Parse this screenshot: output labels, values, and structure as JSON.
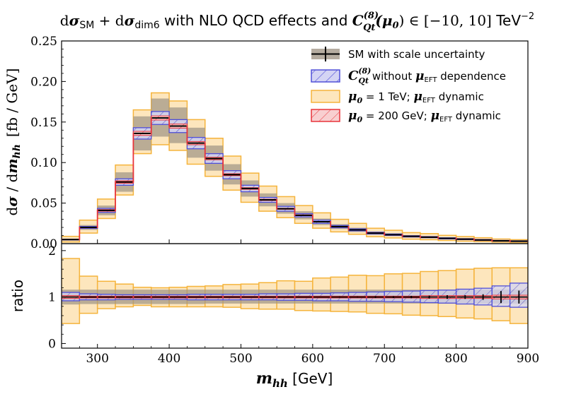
{
  "chart_data": {
    "type": "histogram-ratio",
    "title": "dσ_SM + dσ_dim6 with NLO QCD effects and C_Qt^(8)(μ0) ∈ [−10, 10] TeV^−2",
    "title_parts": {
      "d1": "d",
      "sigma1": "σ",
      "sm": "SM",
      "plus": " + ",
      "d2": "d",
      "sigma2": "σ",
      "dim6": "dim6",
      "middle": " with NLO QCD effects and ",
      "coef": "C",
      "coef_sup": "(8)",
      "coef_sub": "Qt",
      "mu": "(μ",
      "mu_sub": "0",
      "range": ") ∈ [−10, 10] ",
      "unit": "TeV",
      "unit_sup": "−2"
    },
    "xlabel": {
      "var": "m",
      "var_sub": "hh",
      "unit": " [GeV]"
    },
    "ylabel_top": {
      "d": "d",
      "sigma": "σ",
      "slash": " / d",
      "var": "m",
      "var_sub": "hh",
      "unit": "[fb / GeV]"
    },
    "ylabel_bottom": "ratio",
    "xlim": [
      250,
      900
    ],
    "ylim_top": [
      0.0,
      0.25
    ],
    "ylim_bottom": [
      -0.1,
      2.15
    ],
    "x_ticks": [
      300,
      400,
      500,
      600,
      700,
      800,
      900
    ],
    "x_tick_labels": [
      "300",
      "400",
      "500",
      "600",
      "700",
      "800",
      "900"
    ],
    "y_ticks_top": [
      0.0,
      0.05,
      0.1,
      0.15,
      0.2,
      0.25
    ],
    "y_tick_labels_top": [
      "0.00",
      "0.05",
      "0.10",
      "0.15",
      "0.20",
      "0.25"
    ],
    "y_ticks_bottom": [
      0,
      1,
      2
    ],
    "y_tick_labels_bottom": [
      "0",
      "1",
      "2"
    ],
    "bin_edges": [
      250,
      275,
      300,
      325,
      350,
      375,
      400,
      425,
      450,
      475,
      500,
      525,
      550,
      575,
      600,
      625,
      650,
      675,
      700,
      725,
      750,
      775,
      800,
      825,
      850,
      875,
      900
    ],
    "sm_values": [
      0.005,
      0.02,
      0.041,
      0.076,
      0.136,
      0.155,
      0.145,
      0.124,
      0.105,
      0.085,
      0.068,
      0.054,
      0.043,
      0.035,
      0.027,
      0.021,
      0.017,
      0.013,
      0.011,
      0.009,
      0.008,
      0.0065,
      0.0055,
      0.0045,
      0.0035,
      0.003
    ],
    "sm_scale_band": {
      "low": [
        0.004,
        0.017,
        0.035,
        0.064,
        0.115,
        0.132,
        0.124,
        0.106,
        0.09,
        0.073,
        0.058,
        0.046,
        0.037,
        0.03,
        0.023,
        0.018,
        0.0145,
        0.011,
        0.0094,
        0.0077,
        0.0068,
        0.0055,
        0.0047,
        0.0038,
        0.003,
        0.0026
      ],
      "high": [
        0.006,
        0.023,
        0.047,
        0.088,
        0.157,
        0.179,
        0.168,
        0.143,
        0.121,
        0.098,
        0.078,
        0.062,
        0.05,
        0.04,
        0.031,
        0.024,
        0.0196,
        0.015,
        0.0127,
        0.0104,
        0.0092,
        0.0075,
        0.0063,
        0.0052,
        0.004,
        0.0035
      ]
    },
    "series": [
      {
        "name": "C_Qt^(8) without μ_EFT dependence",
        "style": "blue-hatched",
        "low": [
          0.0046,
          0.0188,
          0.0385,
          0.072,
          0.129,
          0.147,
          0.137,
          0.117,
          0.099,
          0.08,
          0.064,
          0.051,
          0.04,
          0.033,
          0.025,
          0.0196,
          0.0158,
          0.012,
          0.0101,
          0.0082,
          0.0073,
          0.0058,
          0.0049,
          0.0039,
          0.003,
          0.0025
        ],
        "high": [
          0.0054,
          0.0212,
          0.0435,
          0.08,
          0.143,
          0.163,
          0.153,
          0.131,
          0.111,
          0.09,
          0.072,
          0.057,
          0.046,
          0.037,
          0.029,
          0.0224,
          0.0182,
          0.014,
          0.0119,
          0.0098,
          0.0087,
          0.0072,
          0.0061,
          0.0051,
          0.004,
          0.0035
        ],
        "ratio_low": [
          0.92,
          0.94,
          0.94,
          0.95,
          0.95,
          0.95,
          0.95,
          0.94,
          0.94,
          0.94,
          0.94,
          0.94,
          0.93,
          0.93,
          0.92,
          0.92,
          0.91,
          0.91,
          0.9,
          0.89,
          0.88,
          0.87,
          0.85,
          0.83,
          0.8,
          0.78
        ],
        "ratio_high": [
          1.1,
          1.07,
          1.06,
          1.05,
          1.05,
          1.05,
          1.05,
          1.06,
          1.06,
          1.06,
          1.06,
          1.07,
          1.07,
          1.08,
          1.08,
          1.09,
          1.1,
          1.11,
          1.12,
          1.13,
          1.14,
          1.15,
          1.17,
          1.19,
          1.24,
          1.3
        ]
      },
      {
        "name": "μ0 = 1 TeV; μ_EFT dynamic",
        "style": "orange-filled",
        "low": [
          0.002,
          0.013,
          0.031,
          0.06,
          0.111,
          0.122,
          0.115,
          0.098,
          0.083,
          0.066,
          0.051,
          0.04,
          0.032,
          0.025,
          0.019,
          0.0145,
          0.0115,
          0.0085,
          0.007,
          0.0055,
          0.0048,
          0.0038,
          0.003,
          0.0024,
          0.0017,
          0.0013
        ],
        "high": [
          0.009,
          0.029,
          0.055,
          0.097,
          0.165,
          0.186,
          0.176,
          0.153,
          0.13,
          0.108,
          0.087,
          0.071,
          0.058,
          0.047,
          0.038,
          0.03,
          0.025,
          0.019,
          0.0165,
          0.0136,
          0.0124,
          0.0102,
          0.0088,
          0.0073,
          0.0057,
          0.0049
        ],
        "ratio_low": [
          0.43,
          0.65,
          0.75,
          0.79,
          0.82,
          0.79,
          0.79,
          0.79,
          0.79,
          0.78,
          0.75,
          0.74,
          0.74,
          0.71,
          0.7,
          0.69,
          0.68,
          0.65,
          0.64,
          0.61,
          0.6,
          0.58,
          0.55,
          0.53,
          0.49,
          0.43
        ],
        "ratio_high": [
          1.83,
          1.45,
          1.34,
          1.28,
          1.21,
          1.2,
          1.21,
          1.23,
          1.24,
          1.27,
          1.28,
          1.31,
          1.35,
          1.34,
          1.41,
          1.43,
          1.47,
          1.46,
          1.5,
          1.51,
          1.55,
          1.57,
          1.6,
          1.62,
          1.63,
          1.63
        ]
      },
      {
        "name": "μ0 = 200 GeV; μ_EFT dynamic",
        "style": "red-hatched",
        "low": [
          0.0048,
          0.0195,
          0.04,
          0.0745,
          0.1335,
          0.1525,
          0.1425,
          0.122,
          0.1035,
          0.0838,
          0.067,
          0.0532,
          0.0424,
          0.0345,
          0.0266,
          0.0207,
          0.0167,
          0.0128,
          0.0108,
          0.0088,
          0.0078,
          0.0063,
          0.0053,
          0.0043,
          0.0033,
          0.0028
        ],
        "high": [
          0.0052,
          0.0205,
          0.042,
          0.0775,
          0.1385,
          0.1575,
          0.1475,
          0.126,
          0.1065,
          0.0862,
          0.069,
          0.0548,
          0.0436,
          0.0355,
          0.0274,
          0.0213,
          0.0173,
          0.0132,
          0.0112,
          0.0092,
          0.0082,
          0.0067,
          0.0057,
          0.0047,
          0.0037,
          0.0032
        ],
        "ratio_low": [
          0.97,
          0.98,
          0.98,
          0.98,
          0.98,
          0.98,
          0.98,
          0.98,
          0.98,
          0.98,
          0.98,
          0.98,
          0.98,
          0.98,
          0.98,
          0.98,
          0.98,
          0.98,
          0.98,
          0.98,
          0.97,
          0.97,
          0.97,
          0.97,
          0.96,
          0.96
        ],
        "ratio_high": [
          1.03,
          1.02,
          1.02,
          1.02,
          1.02,
          1.02,
          1.02,
          1.02,
          1.02,
          1.02,
          1.02,
          1.02,
          1.02,
          1.02,
          1.02,
          1.02,
          1.02,
          1.02,
          1.02,
          1.02,
          1.03,
          1.03,
          1.03,
          1.03,
          1.04,
          1.04
        ]
      }
    ],
    "sm_ratio_band": {
      "low": [
        0.84,
        0.85,
        0.85,
        0.85,
        0.85,
        0.85,
        0.85,
        0.85,
        0.86,
        0.86,
        0.86,
        0.86,
        0.86,
        0.86,
        0.86,
        0.86,
        0.86,
        0.86,
        0.86,
        0.86,
        0.86,
        0.86,
        0.86,
        0.86,
        0.86,
        0.86
      ],
      "high": [
        1.16,
        1.16,
        1.16,
        1.16,
        1.16,
        1.16,
        1.16,
        1.16,
        1.16,
        1.16,
        1.16,
        1.16,
        1.16,
        1.16,
        1.16,
        1.16,
        1.16,
        1.16,
        1.16,
        1.16,
        1.16,
        1.16,
        1.16,
        1.16,
        1.16,
        1.16
      ]
    },
    "sm_ratio_stat_err": [
      0.01,
      0.01,
      0.01,
      0.01,
      0.01,
      0.01,
      0.01,
      0.01,
      0.01,
      0.01,
      0.01,
      0.01,
      0.01,
      0.01,
      0.01,
      0.015,
      0.015,
      0.02,
      0.02,
      0.025,
      0.03,
      0.04,
      0.04,
      0.06,
      0.13,
      0.14
    ],
    "legend": {
      "position": "top-right",
      "items": [
        {
          "key": "sm",
          "label": "SM with scale uncertainty"
        },
        {
          "key": "blue",
          "coef": "C",
          "coef_sup": "(8)",
          "coef_sub": "Qt",
          "pre": " without ",
          "mu": "μ",
          "mu_sub": "EFT",
          "post": " dependence"
        },
        {
          "key": "orange",
          "mu0": "μ",
          "mu0_sub": "0",
          "eq": " = 1 TeV; ",
          "mu": "μ",
          "mu_sub": "EFT",
          "post": " dynamic"
        },
        {
          "key": "red",
          "mu0": "μ",
          "mu0_sub": "0",
          "eq": " = 200 GeV; ",
          "mu": "μ",
          "mu_sub": "EFT",
          "post": " dynamic"
        }
      ]
    },
    "colors": {
      "sm_band": "#a09585",
      "sm_line": "#000000",
      "blue": "#5050d8",
      "blue_fill": "#ccccf2",
      "orange": "#f5b43c",
      "orange_fill": "#fde6bd",
      "red": "#e8343a",
      "red_fill": "#f8cfd0"
    }
  }
}
